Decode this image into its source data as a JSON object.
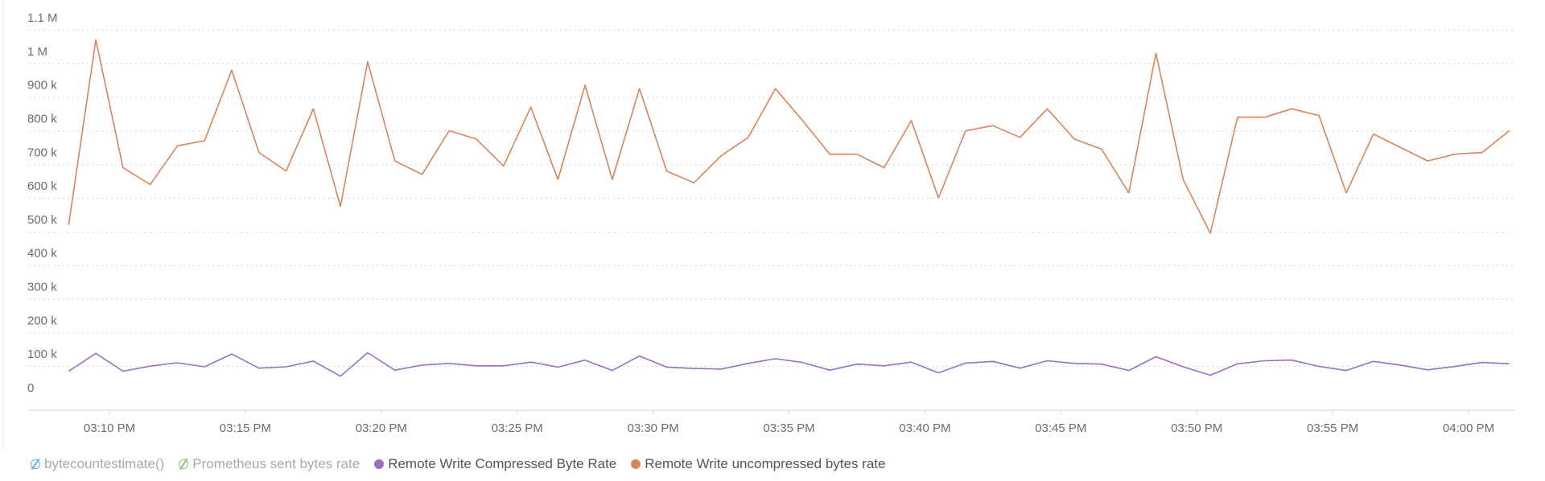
{
  "chart_data": {
    "type": "line",
    "y_tick_labels": [
      "0",
      "100 k",
      "200 k",
      "300 k",
      "400 k",
      "500 k",
      "600 k",
      "700 k",
      "800 k",
      "900 k",
      "1 M",
      "1.1 M"
    ],
    "y_ticks": [
      0,
      100000,
      200000,
      300000,
      400000,
      500000,
      600000,
      700000,
      800000,
      900000,
      1000000,
      1100000
    ],
    "ylim": [
      0,
      1100000
    ],
    "x_tick_labels": [
      "03:10 PM",
      "03:15 PM",
      "03:20 PM",
      "03:25 PM",
      "03:30 PM",
      "03:35 PM",
      "03:40 PM",
      "03:45 PM",
      "03:50 PM",
      "03:55 PM",
      "04:00 PM"
    ],
    "x_ticks": [
      "15:10",
      "15:15",
      "15:20",
      "15:25",
      "15:30",
      "15:35",
      "15:40",
      "15:45",
      "15:50",
      "15:55",
      "16:00"
    ],
    "xlim": [
      "15:08:50",
      "16:01:40"
    ],
    "x": [
      "15:08:30",
      "15:09:30",
      "15:10:30",
      "15:11:30",
      "15:12:30",
      "15:13:30",
      "15:14:30",
      "15:15:30",
      "15:16:30",
      "15:17:30",
      "15:18:30",
      "15:19:30",
      "15:20:30",
      "15:21:30",
      "15:22:30",
      "15:23:30",
      "15:24:30",
      "15:25:30",
      "15:26:30",
      "15:27:30",
      "15:28:30",
      "15:29:30",
      "15:30:30",
      "15:31:30",
      "15:32:30",
      "15:33:30",
      "15:34:30",
      "15:35:30",
      "15:36:30",
      "15:37:30",
      "15:38:30",
      "15:39:30",
      "15:40:30",
      "15:41:30",
      "15:42:30",
      "15:43:30",
      "15:44:30",
      "15:45:30",
      "15:46:30",
      "15:47:30",
      "15:48:30",
      "15:49:30",
      "15:50:30",
      "15:51:30",
      "15:52:30",
      "15:53:30",
      "15:54:30",
      "15:55:30",
      "15:56:30",
      "15:57:30",
      "15:58:30",
      "15:59:30",
      "16:00:30",
      "16:01:30"
    ],
    "series": [
      {
        "name": "Remote Write uncompressed bytes rate",
        "color": "#d8845a",
        "values": [
          520000,
          1070000,
          690000,
          640000,
          755000,
          770000,
          980000,
          735000,
          680000,
          865000,
          575000,
          1005000,
          710000,
          670000,
          800000,
          775000,
          695000,
          870000,
          655000,
          935000,
          655000,
          925000,
          680000,
          645000,
          725000,
          780000,
          925000,
          830000,
          730000,
          730000,
          690000,
          830000,
          600000,
          800000,
          815000,
          780000,
          865000,
          775000,
          745000,
          615000,
          1030000,
          655000,
          495000,
          840000,
          840000,
          865000,
          845000,
          615000,
          790000,
          750000,
          710000,
          730000,
          735000,
          800000
        ]
      },
      {
        "name": "Remote Write Compressed Byte Rate",
        "color": "#9a6fc2",
        "values": [
          85000,
          138000,
          85000,
          100000,
          110000,
          98000,
          136000,
          94000,
          98000,
          115000,
          70000,
          140000,
          88000,
          103000,
          108000,
          101000,
          101000,
          112000,
          97000,
          118000,
          87000,
          130000,
          97000,
          93000,
          91000,
          108000,
          122000,
          111000,
          88000,
          106000,
          101000,
          112000,
          80000,
          109000,
          114000,
          94000,
          116000,
          108000,
          106000,
          87000,
          128000,
          98000,
          73000,
          107000,
          116000,
          118000,
          99000,
          87000,
          114000,
          103000,
          89000,
          99000,
          111000,
          107000
        ]
      },
      {
        "name": "Prometheus sent bytes rate",
        "color": "#91c46e",
        "hidden": true
      },
      {
        "name": "bytecountestimate()",
        "color": "#5db6cc",
        "hidden": true
      }
    ]
  },
  "legend": [
    {
      "label": "bytecountestimate()",
      "color": "#5db6cc",
      "hidden": true,
      "icon": "slashed-circle-icon"
    },
    {
      "label": "Prometheus sent bytes rate",
      "color": "#91c46e",
      "hidden": true,
      "icon": "slashed-circle-icon"
    },
    {
      "label": "Remote Write Compressed Byte Rate",
      "color": "#9a6fc2",
      "hidden": false,
      "icon": "dot-icon"
    },
    {
      "label": "Remote Write uncompressed bytes rate",
      "color": "#d8845a",
      "hidden": false,
      "icon": "dot-icon"
    }
  ]
}
